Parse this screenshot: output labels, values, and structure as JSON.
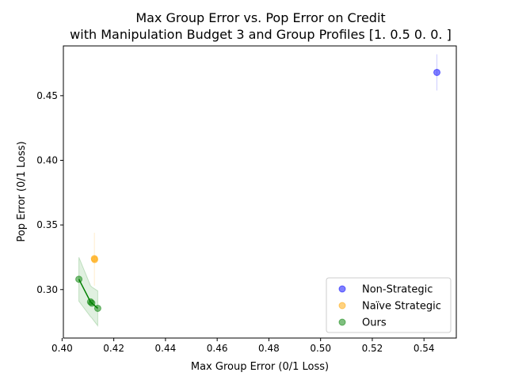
{
  "chart_data": {
    "type": "scatter",
    "title": "Max Group Error vs. Pop Error on Credit",
    "subtitle": "with Manipulation Budget 3 and Group Profiles [1.  0.5 0.  0. ]",
    "xlabel": "Max Group Error (0/1 Loss)",
    "ylabel": "Pop Error (0/1 Loss)",
    "xlim": [
      0.4005,
      0.5525
    ],
    "ylim": [
      0.2625,
      0.4885
    ],
    "xticks": [
      0.4,
      0.42,
      0.44,
      0.46,
      0.48,
      0.5,
      0.52,
      0.54
    ],
    "xtick_labels": [
      "0.40",
      "0.42",
      "0.44",
      "0.46",
      "0.48",
      "0.50",
      "0.52",
      "0.54"
    ],
    "yticks": [
      0.3,
      0.35,
      0.4,
      0.45
    ],
    "ytick_labels": [
      "0.30",
      "0.35",
      "0.40",
      "0.45"
    ],
    "grid": false,
    "legend_position": "lower-right",
    "series": [
      {
        "name": "Non-Strategic",
        "color": "#0000ff",
        "points": [
          {
            "x": 0.545,
            "y": 0.468
          }
        ],
        "error_band": [
          [
            0.545,
            0.454,
            0.482
          ]
        ]
      },
      {
        "name": "Naïve Strategic",
        "color": "#ffa500",
        "points": [
          {
            "x": 0.4125,
            "y": 0.324
          },
          {
            "x": 0.4126,
            "y": 0.3232
          }
        ],
        "error_band": [
          [
            0.4125,
            0.303,
            0.344
          ]
        ]
      },
      {
        "name": "Ours",
        "color": "#008000",
        "points": [
          {
            "x": 0.4065,
            "y": 0.308
          },
          {
            "x": 0.411,
            "y": 0.2905
          },
          {
            "x": 0.4115,
            "y": 0.2895
          },
          {
            "x": 0.4138,
            "y": 0.2855
          }
        ],
        "line": true,
        "error_band": [
          [
            0.4065,
            0.291,
            0.325
          ],
          [
            0.411,
            0.279,
            0.303
          ],
          [
            0.4115,
            0.278,
            0.302
          ],
          [
            0.4138,
            0.272,
            0.299
          ]
        ]
      }
    ]
  }
}
